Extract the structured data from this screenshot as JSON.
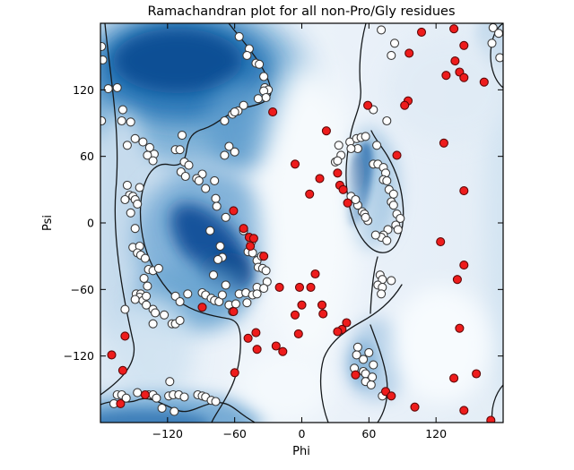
{
  "chart_data": {
    "type": "scatter",
    "title": "Ramachandran plot for all non-Pro/Gly residues",
    "xlabel": "Phi",
    "ylabel": "Psi",
    "xlim": [
      -180,
      180
    ],
    "ylim": [
      -180,
      180
    ],
    "xticks": [
      -120,
      -60,
      0,
      60,
      120
    ],
    "yticks": [
      -120,
      -60,
      0,
      60,
      120
    ],
    "grid": false,
    "legend": "none",
    "background": "kernel-density heatmap (Blues colormap) of allowed Ramachandran regions with black contour outlines",
    "series": [
      {
        "name": "favored-residues",
        "marker": "circle",
        "fill": "#ffffff",
        "edge": "#3a3a3a",
        "points": [
          [
            -179,
            159
          ],
          [
            -178,
            147
          ],
          [
            -173,
            121
          ],
          [
            -165,
            122
          ],
          [
            -179,
            92
          ],
          [
            -160,
            102
          ],
          [
            -161,
            92
          ],
          [
            -153,
            91
          ],
          [
            -156,
            70
          ],
          [
            -149,
            76
          ],
          [
            -142,
            73
          ],
          [
            -136,
            68
          ],
          [
            -132,
            62
          ],
          [
            -138,
            61
          ],
          [
            -113,
            66
          ],
          [
            -107,
            79
          ],
          [
            -109,
            66
          ],
          [
            -69,
            92
          ],
          [
            -62,
            98
          ],
          [
            -65,
            69
          ],
          [
            -69,
            61
          ],
          [
            -60,
            64
          ],
          [
            -56,
            168
          ],
          [
            -47,
            157
          ],
          [
            -49,
            151
          ],
          [
            -41,
            144
          ],
          [
            -38,
            143
          ],
          [
            -34,
            132
          ],
          [
            -33,
            122
          ],
          [
            -30,
            120
          ],
          [
            -34,
            119
          ],
          [
            -32,
            113
          ],
          [
            -39,
            112
          ],
          [
            -52,
            106
          ],
          [
            -57,
            101
          ],
          [
            -60,
            100
          ],
          [
            33,
            70
          ],
          [
            43,
            73
          ],
          [
            49,
            76
          ],
          [
            53,
            77
          ],
          [
            57,
            78
          ],
          [
            50,
            67
          ],
          [
            35,
            61
          ],
          [
            71,
            174
          ],
          [
            83,
            162
          ],
          [
            80,
            151
          ],
          [
            171,
            176
          ],
          [
            176,
            171
          ],
          [
            170,
            162
          ],
          [
            177,
            149
          ],
          [
            76,
            92
          ],
          [
            64,
            102
          ],
          [
            44,
            67
          ],
          [
            67,
            70
          ],
          [
            64,
            53
          ],
          [
            68,
            53
          ],
          [
            73,
            50
          ],
          [
            75,
            45
          ],
          [
            73,
            39
          ],
          [
            76,
            38
          ],
          [
            78,
            30
          ],
          [
            82,
            26
          ],
          [
            80,
            19
          ],
          [
            82,
            16
          ],
          [
            54,
            10
          ],
          [
            50,
            16
          ],
          [
            59,
            2
          ],
          [
            85,
            8
          ],
          [
            88,
            4
          ],
          [
            84,
            -2
          ],
          [
            86,
            -6
          ],
          [
            77,
            -6
          ],
          [
            73,
            -11
          ],
          [
            71,
            -13
          ],
          [
            76,
            -16
          ],
          [
            66,
            -11
          ],
          [
            70,
            -47
          ],
          [
            72,
            -51
          ],
          [
            68,
            -56
          ],
          [
            72,
            -58
          ],
          [
            80,
            -52
          ],
          [
            -133,
            56
          ],
          [
            -105,
            55
          ],
          [
            -101,
            52
          ],
          [
            -108,
            46
          ],
          [
            -104,
            42
          ],
          [
            -89,
            44
          ],
          [
            -94,
            40
          ],
          [
            -92,
            38
          ],
          [
            -78,
            38
          ],
          [
            -86,
            31
          ],
          [
            -156,
            34
          ],
          [
            -145,
            32
          ],
          [
            -154,
            25
          ],
          [
            -151,
            24
          ],
          [
            -158,
            21
          ],
          [
            -149,
            21
          ],
          [
            -147,
            17
          ],
          [
            -153,
            9
          ],
          [
            -77,
            22
          ],
          [
            -76,
            15
          ],
          [
            -68,
            5
          ],
          [
            -82,
            -7
          ],
          [
            -149,
            -5
          ],
          [
            -151,
            -22
          ],
          [
            -145,
            -21
          ],
          [
            -147,
            -27
          ],
          [
            -144,
            -29
          ],
          [
            -140,
            -32
          ],
          [
            -73,
            -21
          ],
          [
            -71,
            -31
          ],
          [
            -75,
            -33
          ],
          [
            -137,
            -42
          ],
          [
            -133,
            -43
          ],
          [
            -128,
            -41
          ],
          [
            -141,
            -50
          ],
          [
            -138,
            -57
          ],
          [
            -79,
            -47
          ],
          [
            -68,
            -56
          ],
          [
            30,
            55
          ],
          [
            32,
            56
          ],
          [
            44,
            24
          ],
          [
            48,
            21
          ],
          [
            56,
            8
          ],
          [
            57,
            5
          ],
          [
            -52,
            -7
          ],
          [
            -45,
            -17
          ],
          [
            -48,
            -26
          ],
          [
            -44,
            -27
          ],
          [
            -40,
            -34
          ],
          [
            -36,
            -30
          ],
          [
            -39,
            -40
          ],
          [
            -35,
            -41
          ],
          [
            -32,
            -43
          ],
          [
            -31,
            -53
          ],
          [
            -40,
            -58
          ],
          [
            -34,
            -59
          ],
          [
            -148,
            -64
          ],
          [
            -144,
            -64
          ],
          [
            -145,
            -67
          ],
          [
            -149,
            -69
          ],
          [
            -142,
            -70
          ],
          [
            -139,
            -66
          ],
          [
            -113,
            -66
          ],
          [
            -109,
            -71
          ],
          [
            -102,
            -64
          ],
          [
            -139,
            -74
          ],
          [
            -133,
            -78
          ],
          [
            -131,
            -81
          ],
          [
            -123,
            -83
          ],
          [
            -116,
            -91
          ],
          [
            -113,
            -91
          ],
          [
            -109,
            -88
          ],
          [
            -133,
            -91
          ],
          [
            -89,
            -63
          ],
          [
            -86,
            -65
          ],
          [
            -81,
            -68
          ],
          [
            -78,
            -70
          ],
          [
            -74,
            -71
          ],
          [
            -71,
            -65
          ],
          [
            -65,
            -74
          ],
          [
            -62,
            -80
          ],
          [
            -158,
            -78
          ],
          [
            -165,
            -155
          ],
          [
            -161,
            -155
          ],
          [
            -157,
            -158
          ],
          [
            -168,
            -163
          ],
          [
            -147,
            -153
          ],
          [
            -137,
            -155
          ],
          [
            -133,
            -155
          ],
          [
            -130,
            -158
          ],
          [
            -119,
            -156
          ],
          [
            -115,
            -155
          ],
          [
            -110,
            -155
          ],
          [
            -105,
            -157
          ],
          [
            -125,
            -167
          ],
          [
            -114,
            -170
          ],
          [
            -118,
            -143
          ],
          [
            -93,
            -155
          ],
          [
            -89,
            -156
          ],
          [
            -86,
            -157
          ],
          [
            -81,
            -160
          ],
          [
            -77,
            -161
          ],
          [
            -56,
            -64
          ],
          [
            -50,
            -63
          ],
          [
            -44,
            -65
          ],
          [
            -40,
            -64
          ],
          [
            -49,
            -72
          ],
          [
            -59,
            -73
          ],
          [
            50,
            -112
          ],
          [
            49,
            -119
          ],
          [
            55,
            -123
          ],
          [
            47,
            -131
          ],
          [
            55,
            -134
          ],
          [
            57,
            -136
          ],
          [
            71,
            -64
          ],
          [
            60,
            -117
          ],
          [
            64,
            -128
          ],
          [
            63,
            -139
          ],
          [
            57,
            -143
          ],
          [
            62,
            -146
          ],
          [
            72,
            -156
          ]
        ]
      },
      {
        "name": "outlier-residues",
        "marker": "circle",
        "fill": "#ee1c1c",
        "edge": "#5f0808",
        "points": [
          [
            -26,
            100
          ],
          [
            22,
            83
          ],
          [
            59,
            106
          ],
          [
            107,
            172
          ],
          [
            136,
            175
          ],
          [
            145,
            160
          ],
          [
            96,
            153
          ],
          [
            137,
            146
          ],
          [
            141,
            136
          ],
          [
            129,
            133
          ],
          [
            145,
            131
          ],
          [
            163,
            127
          ],
          [
            95,
            110
          ],
          [
            92,
            106
          ],
          [
            127,
            72
          ],
          [
            85,
            61
          ],
          [
            -61,
            11
          ],
          [
            -6,
            53
          ],
          [
            16,
            40
          ],
          [
            7,
            26
          ],
          [
            32,
            45
          ],
          [
            34,
            34
          ],
          [
            37,
            30
          ],
          [
            41,
            18
          ],
          [
            -52,
            -5
          ],
          [
            -47,
            -13
          ],
          [
            -43,
            -14
          ],
          [
            -46,
            -21
          ],
          [
            -34,
            -30
          ],
          [
            12,
            -46
          ],
          [
            -20,
            -58
          ],
          [
            -2,
            -58
          ],
          [
            8,
            -58
          ],
          [
            145,
            29
          ],
          [
            124,
            -17
          ],
          [
            145,
            -38
          ],
          [
            139,
            -51
          ],
          [
            -89,
            -76
          ],
          [
            -61,
            -80
          ],
          [
            -158,
            -102
          ],
          [
            -170,
            -119
          ],
          [
            -160,
            -133
          ],
          [
            -140,
            -155
          ],
          [
            -162,
            -163
          ],
          [
            0,
            -74
          ],
          [
            18,
            -74
          ],
          [
            19,
            -82
          ],
          [
            -6,
            -83
          ],
          [
            -3,
            -100
          ],
          [
            -48,
            -104
          ],
          [
            -41,
            -99
          ],
          [
            -40,
            -114
          ],
          [
            -23,
            -111
          ],
          [
            -17,
            -116
          ],
          [
            40,
            -90
          ],
          [
            36,
            -96
          ],
          [
            32,
            -98
          ],
          [
            -60,
            -135
          ],
          [
            48,
            -137
          ],
          [
            141,
            -95
          ],
          [
            136,
            -140
          ],
          [
            156,
            -136
          ],
          [
            101,
            -166
          ],
          [
            145,
            -169
          ],
          [
            169,
            -178
          ],
          [
            75,
            -152
          ],
          [
            80,
            -156
          ]
        ]
      }
    ],
    "marker_radius_px": 4.5,
    "colors": {
      "density_darkest": "#0f4f95",
      "density_dark": "#2f7ab9",
      "density_mid": "#79aed6",
      "density_light": "#c6dbed",
      "density_faint": "#e7eff8",
      "plot_background": "#edf3fa",
      "contour_line": "#15191c",
      "favored_fill": "#ffffff",
      "outlier_fill": "#ee1c1c",
      "axis_color": "#000000"
    }
  }
}
